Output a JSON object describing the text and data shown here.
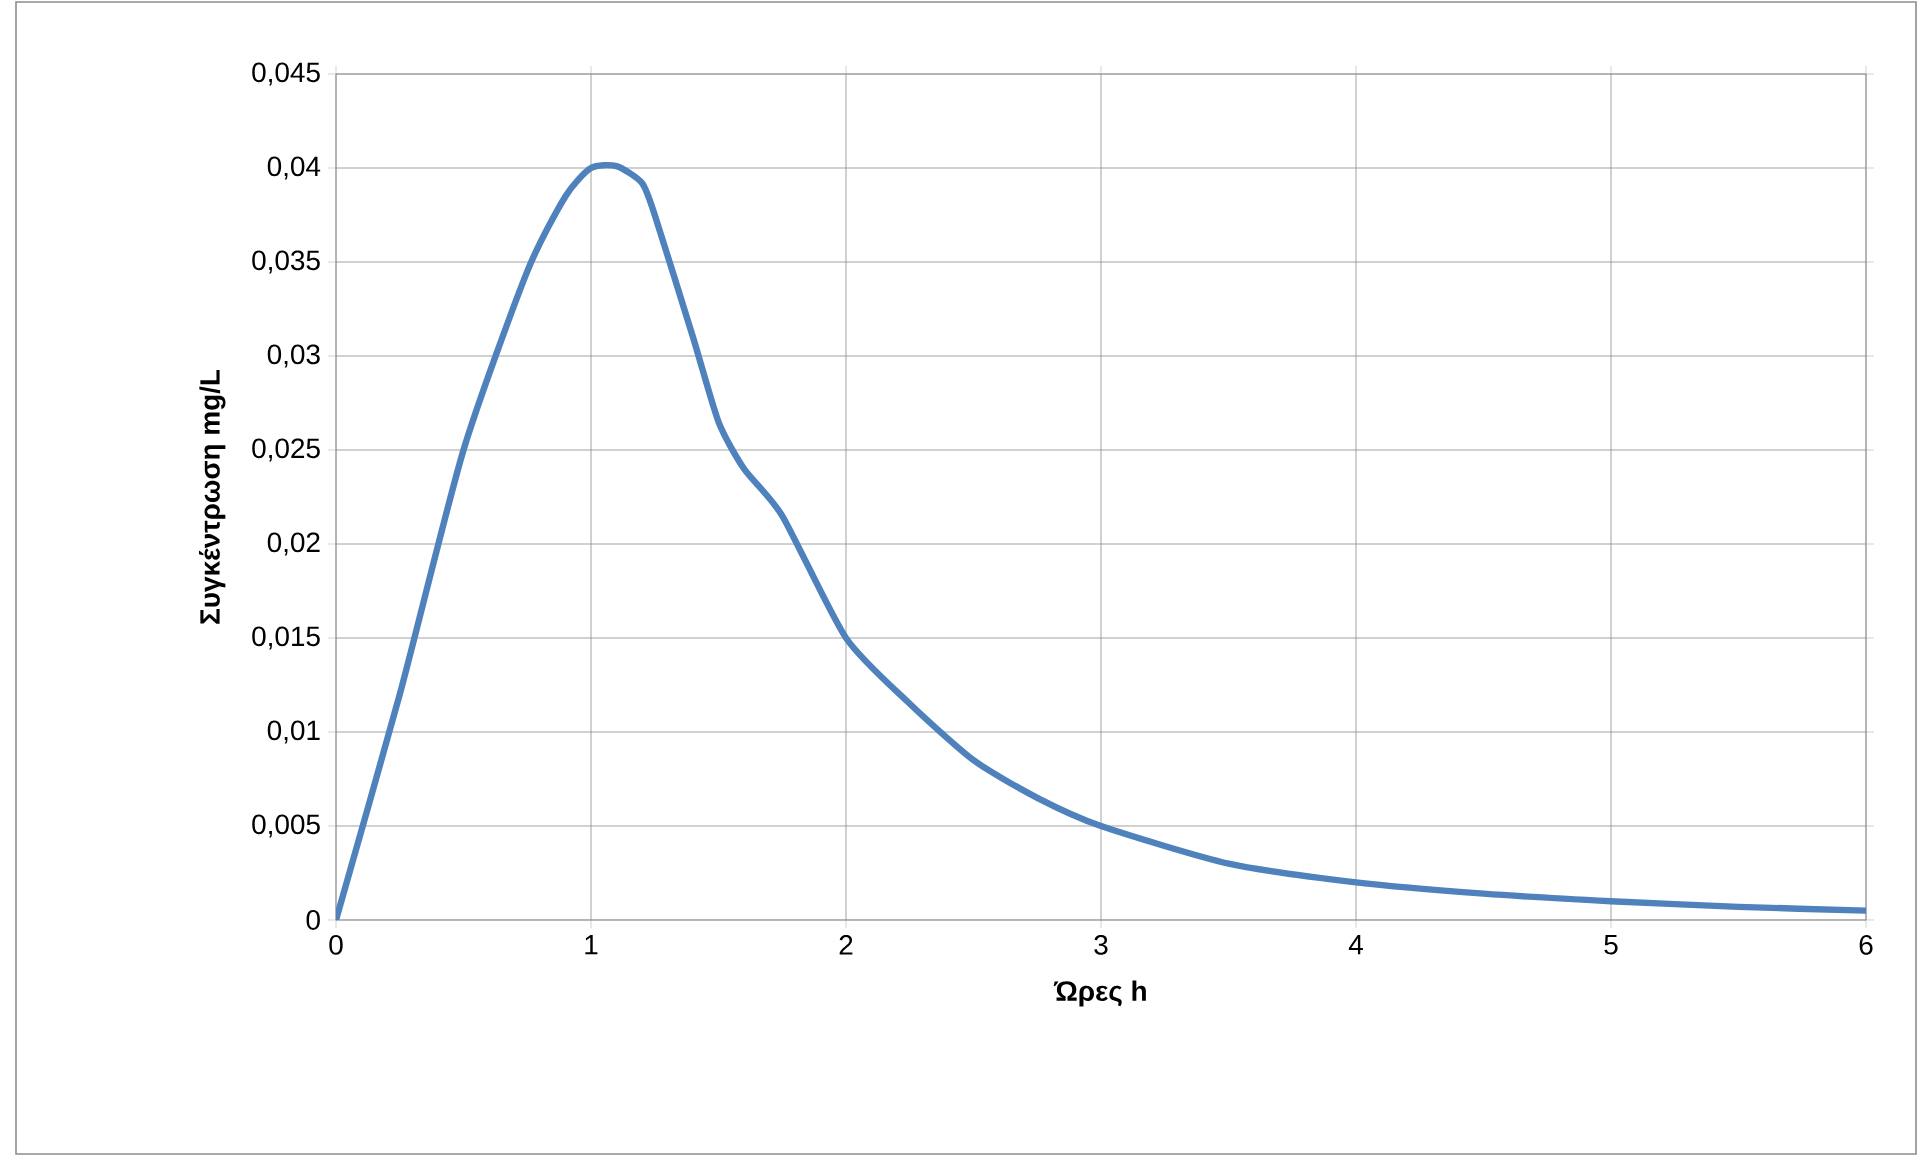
{
  "chart_data": {
    "type": "line",
    "xlabel": "Ώρες h",
    "ylabel": "Συγκέντρωση mg/L",
    "x": [
      0,
      0.25,
      0.5,
      0.75,
      0.9,
      1.0,
      1.1,
      1.2,
      1.25,
      1.4,
      1.5,
      1.6,
      1.75,
      2,
      2.25,
      2.5,
      2.75,
      3,
      3.5,
      4,
      4.5,
      5,
      5.5,
      6
    ],
    "series": [
      {
        "color": "#4f81bd",
        "values": [
          0,
          0.012,
          0.025,
          0.0345,
          0.0385,
          0.04,
          0.0401,
          0.0392,
          0.0375,
          0.031,
          0.0265,
          0.024,
          0.0215,
          0.015,
          0.0115,
          0.0085,
          0.0065,
          0.005,
          0.003,
          0.002,
          0.0014,
          0.001,
          0.0007,
          0.0005
        ]
      }
    ],
    "xlim": [
      0,
      6
    ],
    "xticks": [
      0,
      1,
      2,
      3,
      4,
      5,
      6
    ],
    "ylim": [
      0,
      0.045
    ],
    "yticks": [
      {
        "value": 0,
        "label": "0"
      },
      {
        "value": 0.005,
        "label": "0,005"
      },
      {
        "value": 0.01,
        "label": "0,01"
      },
      {
        "value": 0.015,
        "label": "0,015"
      },
      {
        "value": 0.02,
        "label": "0,02"
      },
      {
        "value": 0.025,
        "label": "0,025"
      },
      {
        "value": 0.03,
        "label": "0,03"
      },
      {
        "value": 0.035,
        "label": "0,035"
      },
      {
        "value": 0.04,
        "label": "0,04"
      },
      {
        "value": 0.045,
        "label": "0,045"
      }
    ],
    "grid": true,
    "marker": "none",
    "line_style": "solid"
  }
}
